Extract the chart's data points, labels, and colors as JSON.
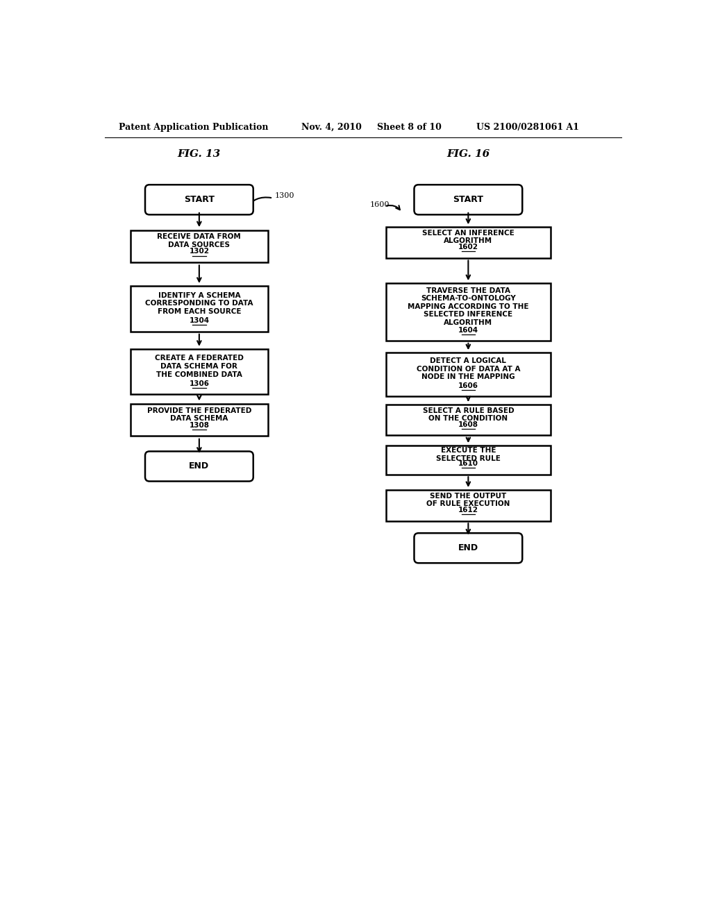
{
  "bg_color": "#ffffff",
  "header_text": "Patent Application Publication",
  "header_date": "Nov. 4, 2010",
  "header_sheet": "Sheet 8 of 10",
  "header_patent": "US 2100/0281061 A1",
  "fig13_title": "FIG. 13",
  "fig16_title": "FIG. 16",
  "fig13_ref": "1300",
  "fig16_ref": "1600",
  "text_color": "#000000",
  "font_size_header": 9,
  "font_size_fig_title": 11,
  "font_size_box": 7.5,
  "font_size_ref": 8
}
